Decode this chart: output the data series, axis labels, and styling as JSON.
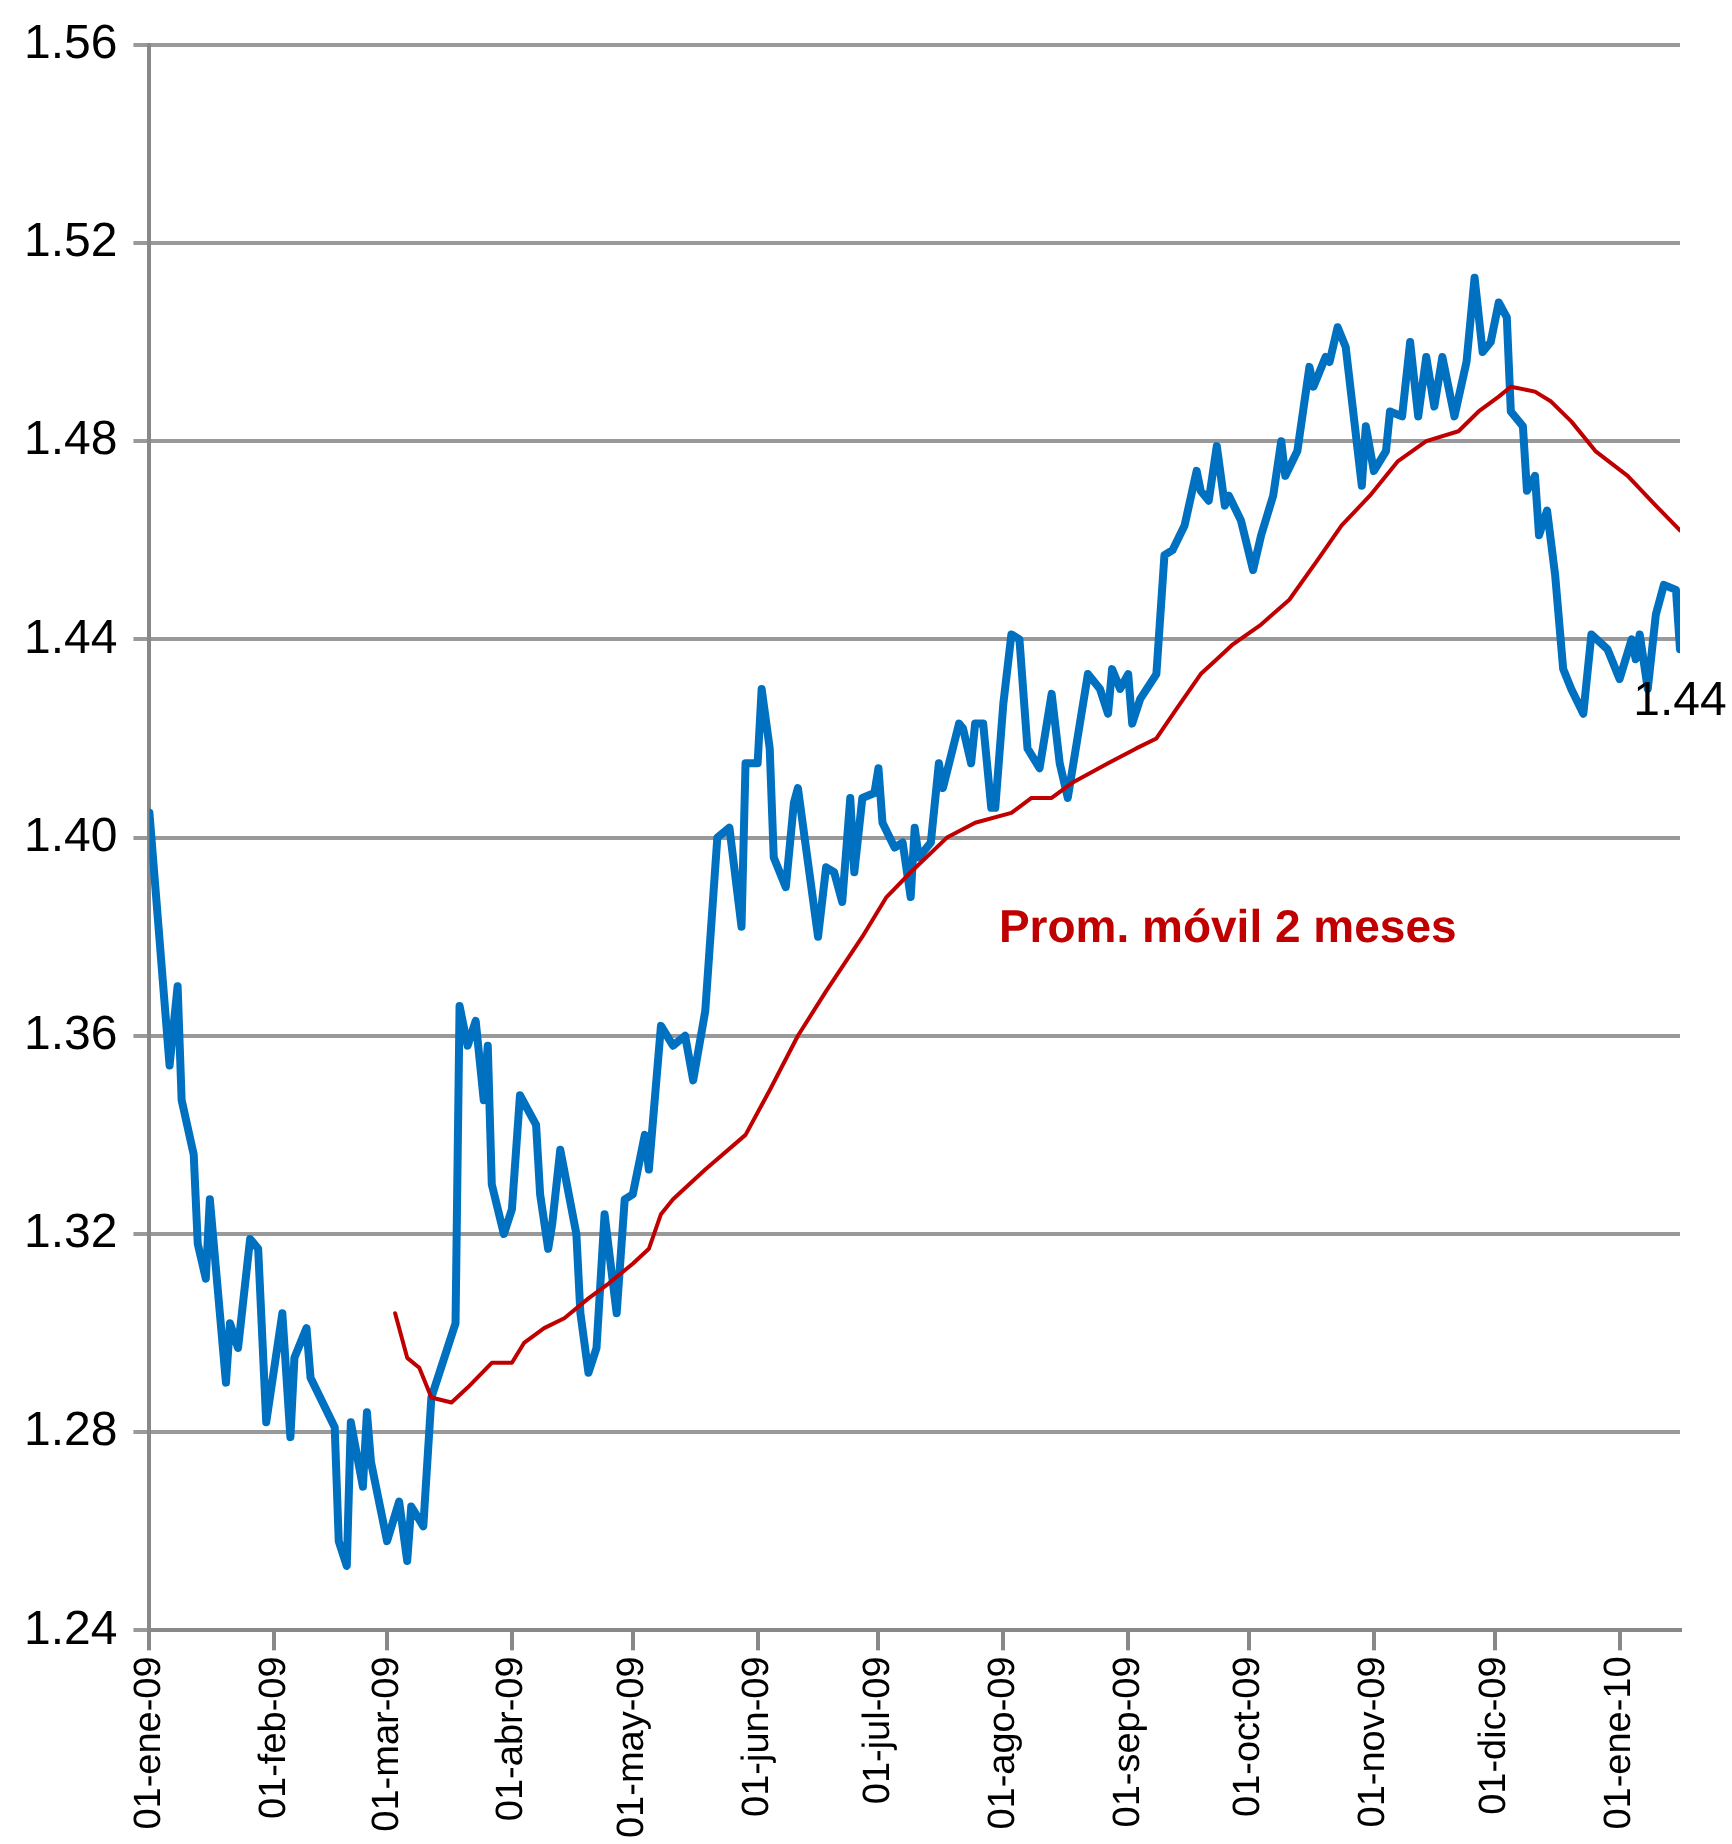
{
  "chart_data": {
    "type": "line",
    "xlim": [
      "2009-01-01",
      "2010-01-16"
    ],
    "xticks": [
      {
        "value": "2009-01-01",
        "label": "01-ene-09"
      },
      {
        "value": "2009-02-01",
        "label": "01-feb-09"
      },
      {
        "value": "2009-03-01",
        "label": "01-mar-09"
      },
      {
        "value": "2009-04-01",
        "label": "01-abr-09"
      },
      {
        "value": "2009-05-01",
        "label": "01-may-09"
      },
      {
        "value": "2009-06-01",
        "label": "01-jun-09"
      },
      {
        "value": "2009-07-01",
        "label": "01-jul-09"
      },
      {
        "value": "2009-08-01",
        "label": "01-ago-09"
      },
      {
        "value": "2009-09-01",
        "label": "01-sep-09"
      },
      {
        "value": "2009-10-01",
        "label": "01-oct-09"
      },
      {
        "value": "2009-11-01",
        "label": "01-nov-09"
      },
      {
        "value": "2009-12-01",
        "label": "01-dic-09"
      },
      {
        "value": "2010-01-01",
        "label": "01-ene-10"
      }
    ],
    "ylim": [
      1.24,
      1.56
    ],
    "yticks": [
      1.24,
      1.28,
      1.32,
      1.36,
      {
        "value": 1.4,
        "label": "1.40"
      },
      1.44,
      1.48,
      1.52,
      1.56
    ],
    "grid": "y",
    "legend": false,
    "marker": "none",
    "line_style": "solid",
    "annotations": [
      {
        "text": "1.44",
        "x": "2010-01-16",
        "y": 1.438
      }
    ],
    "series": [
      {
        "color": "#0070c0",
        "x": [
          "2009-01-01",
          "2009-01-06",
          "2009-01-08",
          "2009-01-09",
          "2009-01-12",
          "2009-01-13",
          "2009-01-15",
          "2009-01-16",
          "2009-01-20",
          "2009-01-21",
          "2009-01-23",
          "2009-01-26",
          "2009-01-28",
          "2009-01-30",
          "2009-02-03",
          "2009-02-05",
          "2009-02-06",
          "2009-02-09",
          "2009-02-10",
          "2009-02-13",
          "2009-02-16",
          "2009-02-17",
          "2009-02-19",
          "2009-02-20",
          "2009-02-23",
          "2009-02-24",
          "2009-02-25",
          "2009-03-01",
          "2009-03-04",
          "2009-03-06",
          "2009-03-07",
          "2009-03-10",
          "2009-03-12",
          "2009-03-16",
          "2009-03-18",
          "2009-03-19",
          "2009-03-21",
          "2009-03-23",
          "2009-03-25",
          "2009-03-26",
          "2009-03-27",
          "2009-03-30",
          "2009-04-01",
          "2009-04-03",
          "2009-04-07",
          "2009-04-08",
          "2009-04-10",
          "2009-04-11",
          "2009-04-13",
          "2009-04-17",
          "2009-04-18",
          "2009-04-20",
          "2009-04-22",
          "2009-04-24",
          "2009-04-27",
          "2009-04-29",
          "2009-05-01",
          "2009-05-04",
          "2009-05-05",
          "2009-05-08",
          "2009-05-11",
          "2009-05-14",
          "2009-05-16",
          "2009-05-19",
          "2009-05-22",
          "2009-05-25",
          "2009-05-28",
          "2009-05-29",
          "2009-06-01",
          "2009-06-02",
          "2009-06-04",
          "2009-06-05",
          "2009-06-08",
          "2009-06-10",
          "2009-06-11",
          "2009-06-13",
          "2009-06-16",
          "2009-06-18",
          "2009-06-20",
          "2009-06-22",
          "2009-06-24",
          "2009-06-25",
          "2009-06-27",
          "2009-06-30",
          "2009-07-01",
          "2009-07-02",
          "2009-07-05",
          "2009-07-07",
          "2009-07-09",
          "2009-07-10",
          "2009-07-11",
          "2009-07-14",
          "2009-07-16",
          "2009-07-17",
          "2009-07-21",
          "2009-07-22",
          "2009-07-24",
          "2009-07-25",
          "2009-07-27",
          "2009-07-29",
          "2009-07-30",
          "2009-08-01",
          "2009-08-03",
          "2009-08-05",
          "2009-08-07",
          "2009-08-10",
          "2009-08-13",
          "2009-08-15",
          "2009-08-17",
          "2009-08-20",
          "2009-08-22",
          "2009-08-25",
          "2009-08-27",
          "2009-08-28",
          "2009-08-30",
          "2009-09-01",
          "2009-09-02",
          "2009-09-04",
          "2009-09-08",
          "2009-09-10",
          "2009-09-12",
          "2009-09-15",
          "2009-09-18",
          "2009-09-19",
          "2009-09-21",
          "2009-09-23",
          "2009-09-25",
          "2009-09-26",
          "2009-09-29",
          "2009-10-02",
          "2009-10-04",
          "2009-10-07",
          "2009-10-09",
          "2009-10-10",
          "2009-10-13",
          "2009-10-16",
          "2009-10-17",
          "2009-10-20",
          "2009-10-21",
          "2009-10-23",
          "2009-10-25",
          "2009-10-29",
          "2009-10-30",
          "2009-11-01",
          "2009-11-04",
          "2009-11-05",
          "2009-11-08",
          "2009-11-10",
          "2009-11-12",
          "2009-11-14",
          "2009-11-16",
          "2009-11-18",
          "2009-11-21",
          "2009-11-24",
          "2009-11-26",
          "2009-11-28",
          "2009-11-30",
          "2009-12-02",
          "2009-12-04",
          "2009-12-05",
          "2009-12-08",
          "2009-12-09",
          "2009-12-11",
          "2009-12-12",
          "2009-12-14",
          "2009-12-16",
          "2009-12-18",
          "2009-12-20",
          "2009-12-23",
          "2009-12-25",
          "2009-12-29",
          "2010-01-01",
          "2010-01-04",
          "2010-01-05",
          "2010-01-06",
          "2010-01-08",
          "2010-01-10",
          "2010-01-12",
          "2010-01-15",
          "2010-01-16"
        ],
        "values": [
          1.405,
          1.354,
          1.37,
          1.347,
          1.336,
          1.318,
          1.311,
          1.327,
          1.29,
          1.302,
          1.297,
          1.319,
          1.317,
          1.282,
          1.304,
          1.279,
          1.295,
          1.301,
          1.291,
          1.286,
          1.281,
          1.258,
          1.253,
          1.282,
          1.269,
          1.284,
          1.274,
          1.258,
          1.266,
          1.254,
          1.265,
          1.261,
          1.287,
          1.297,
          1.302,
          1.366,
          1.358,
          1.363,
          1.347,
          1.358,
          1.33,
          1.32,
          1.325,
          1.348,
          1.342,
          1.328,
          1.317,
          1.322,
          1.337,
          1.32,
          1.304,
          1.292,
          1.297,
          1.324,
          1.304,
          1.327,
          1.328,
          1.34,
          1.333,
          1.362,
          1.358,
          1.36,
          1.351,
          1.365,
          1.4,
          1.402,
          1.382,
          1.415,
          1.415,
          1.43,
          1.418,
          1.396,
          1.39,
          1.407,
          1.41,
          1.398,
          1.38,
          1.394,
          1.393,
          1.387,
          1.408,
          1.393,
          1.408,
          1.409,
          1.414,
          1.403,
          1.398,
          1.399,
          1.388,
          1.402,
          1.396,
          1.399,
          1.415,
          1.41,
          1.423,
          1.422,
          1.415,
          1.423,
          1.423,
          1.406,
          1.406,
          1.427,
          1.441,
          1.44,
          1.418,
          1.414,
          1.429,
          1.415,
          1.408,
          1.423,
          1.433,
          1.43,
          1.425,
          1.434,
          1.43,
          1.433,
          1.423,
          1.428,
          1.433,
          1.457,
          1.458,
          1.463,
          1.474,
          1.47,
          1.468,
          1.479,
          1.467,
          1.469,
          1.464,
          1.454,
          1.461,
          1.469,
          1.48,
          1.473,
          1.478,
          1.495,
          1.491,
          1.497,
          1.496,
          1.503,
          1.499,
          1.471,
          1.483,
          1.474,
          1.478,
          1.486,
          1.485,
          1.5,
          1.485,
          1.497,
          1.487,
          1.497,
          1.485,
          1.496,
          1.513,
          1.498,
          1.5,
          1.508,
          1.505,
          1.486,
          1.483,
          1.47,
          1.473,
          1.461,
          1.466,
          1.453,
          1.434,
          1.43,
          1.425,
          1.441,
          1.438,
          1.432,
          1.44,
          1.436,
          1.441,
          1.43,
          1.445,
          1.451,
          1.45,
          1.438
        ]
      },
      {
        "name": "Prom. móvil 2 meses",
        "color": "#c00000",
        "x": [
          "2009-03-03",
          "2009-03-06",
          "2009-03-09",
          "2009-03-12",
          "2009-03-17",
          "2009-03-21",
          "2009-03-27",
          "2009-04-01",
          "2009-04-04",
          "2009-04-09",
          "2009-04-14",
          "2009-04-20",
          "2009-04-25",
          "2009-05-01",
          "2009-05-05",
          "2009-05-08",
          "2009-05-11",
          "2009-05-19",
          "2009-05-29",
          "2009-06-04",
          "2009-06-11",
          "2009-06-18",
          "2009-06-27",
          "2009-07-03",
          "2009-07-09",
          "2009-07-18",
          "2009-07-25",
          "2009-08-03",
          "2009-08-08",
          "2009-08-13",
          "2009-08-18",
          "2009-08-27",
          "2009-09-03",
          "2009-09-08",
          "2009-09-13",
          "2009-09-19",
          "2009-09-23",
          "2009-09-27",
          "2009-10-04",
          "2009-10-11",
          "2009-10-18",
          "2009-10-24",
          "2009-10-31",
          "2009-11-07",
          "2009-11-14",
          "2009-11-22",
          "2009-11-27",
          "2009-12-02",
          "2009-12-05",
          "2009-12-11",
          "2009-12-15",
          "2009-12-20",
          "2009-12-26",
          "2010-01-03",
          "2010-01-10",
          "2010-01-16"
        ],
        "values": [
          1.304,
          1.295,
          1.293,
          1.287,
          1.286,
          1.289,
          1.294,
          1.294,
          1.298,
          1.301,
          1.303,
          1.307,
          1.31,
          1.314,
          1.317,
          1.324,
          1.327,
          1.333,
          1.34,
          1.349,
          1.36,
          1.369,
          1.38,
          1.388,
          1.393,
          1.4,
          1.403,
          1.405,
          1.408,
          1.408,
          1.411,
          1.415,
          1.418,
          1.42,
          1.426,
          1.433,
          1.436,
          1.439,
          1.443,
          1.448,
          1.456,
          1.463,
          1.469,
          1.476,
          1.48,
          1.482,
          1.486,
          1.489,
          1.491,
          1.49,
          1.488,
          1.484,
          1.478,
          1.473,
          1.467,
          1.462
        ]
      }
    ]
  }
}
